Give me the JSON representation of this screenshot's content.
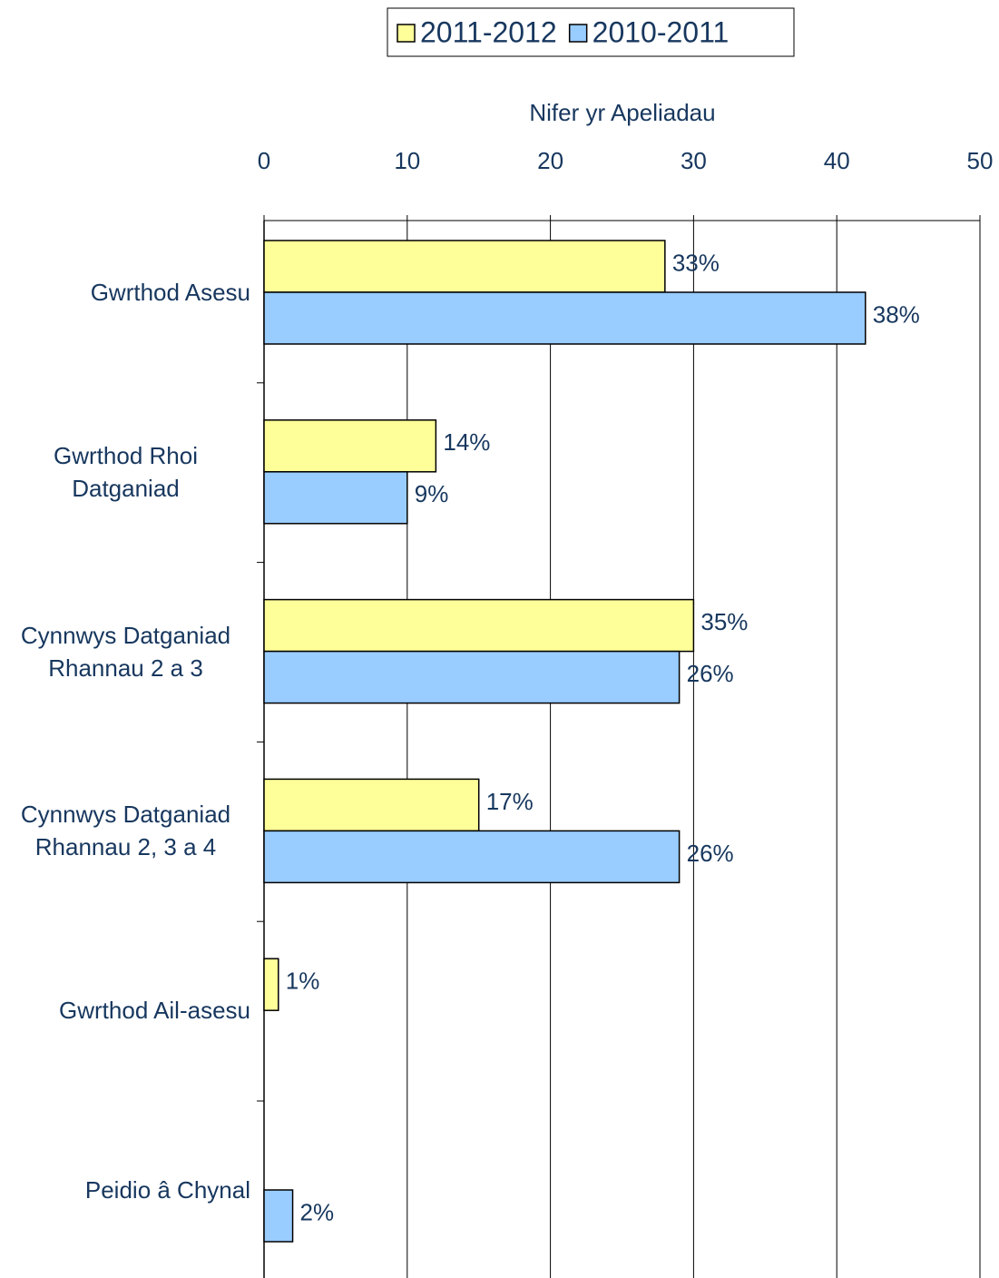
{
  "chart_data": {
    "type": "hbar",
    "x_label": "Nifer yr Apeliadau",
    "categories": [
      "Gwrthod Asesu",
      "Gwrthod Rhoi Datganiad",
      "Cynnwys Datganiad Rhannau 2 a 3",
      "Cynnwys Datganiad Rhannau 2, 3 a 4",
      "Gwrthod Ail-asesu",
      "Peidio â Chynal"
    ],
    "series": [
      {
        "name": "2011-2012",
        "color": "#ffff99",
        "values": [
          28,
          12,
          30,
          15,
          1,
          null
        ],
        "data_labels": [
          "33%",
          "14%",
          "35%",
          "17%",
          "1%",
          null
        ]
      },
      {
        "name": "2010-2011",
        "color": "#99ccff",
        "values": [
          42,
          10,
          29,
          29,
          null,
          2
        ],
        "data_labels": [
          "38%",
          "9%",
          "26%",
          "26%",
          null,
          "2%"
        ]
      }
    ],
    "xlim": [
      0,
      50
    ],
    "xticks": [
      0,
      10,
      20,
      30,
      40,
      50
    ],
    "grid": true,
    "legend": "top"
  }
}
